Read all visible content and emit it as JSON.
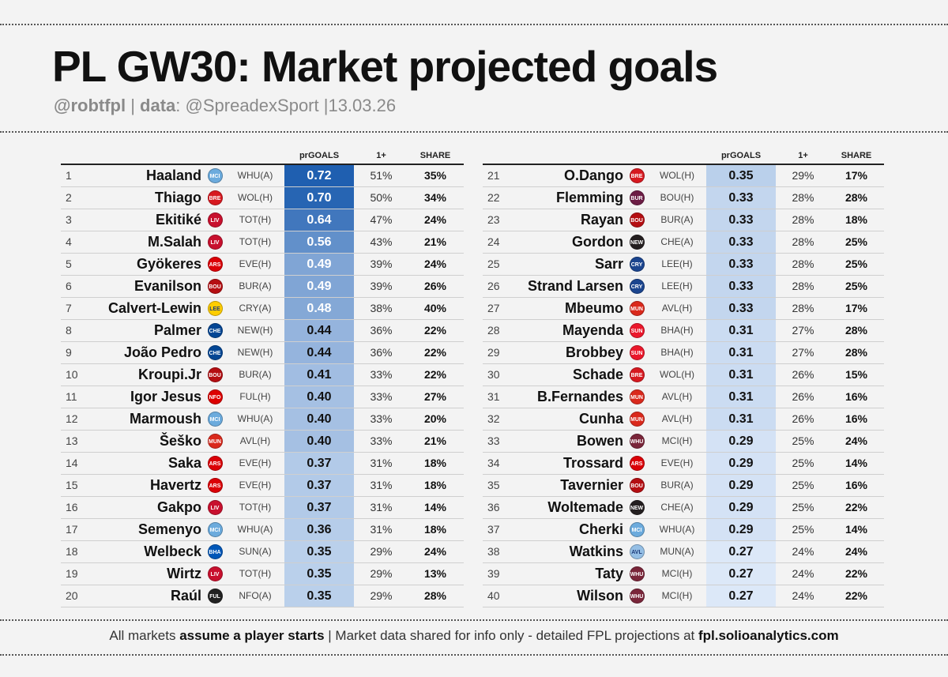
{
  "title": "PL GW30: Market projected goals",
  "subtitle": {
    "handle": "@robtfpl",
    "sep1": " | ",
    "data_label": "data",
    "data_value": ": @SpreadexSport ",
    "sep2": "|",
    "date": "13.03.26"
  },
  "columns": {
    "prgoals": "prGOALS",
    "one_plus": "1+",
    "share": "SHARE"
  },
  "colors": {
    "scale_max": "#1f5fb0",
    "scale_min": "#dce8f8",
    "text_dark": "#111111",
    "text_light": "#ffffff"
  },
  "left_rows": [
    {
      "rank": "1",
      "name": "Haaland",
      "club": "MCI",
      "club_color": "#6cabdd",
      "fixture": "WHU(A)",
      "pr": "0.72",
      "pr_value": 0.72,
      "one": "51%",
      "share": "35%"
    },
    {
      "rank": "2",
      "name": "Thiago",
      "club": "BRE",
      "club_color": "#d71920",
      "fixture": "WOL(H)",
      "pr": "0.70",
      "pr_value": 0.7,
      "one": "50%",
      "share": "34%"
    },
    {
      "rank": "3",
      "name": "Ekitiké",
      "club": "LIV",
      "club_color": "#c8102e",
      "fixture": "TOT(H)",
      "pr": "0.64",
      "pr_value": 0.64,
      "one": "47%",
      "share": "24%"
    },
    {
      "rank": "4",
      "name": "M.Salah",
      "club": "LIV",
      "club_color": "#c8102e",
      "fixture": "TOT(H)",
      "pr": "0.56",
      "pr_value": 0.56,
      "one": "43%",
      "share": "21%"
    },
    {
      "rank": "5",
      "name": "Gyökeres",
      "club": "ARS",
      "club_color": "#db0007",
      "fixture": "EVE(H)",
      "pr": "0.49",
      "pr_value": 0.49,
      "one": "39%",
      "share": "24%"
    },
    {
      "rank": "6",
      "name": "Evanilson",
      "club": "BOU",
      "club_color": "#b50e12",
      "fixture": "BUR(A)",
      "pr": "0.49",
      "pr_value": 0.49,
      "one": "39%",
      "share": "26%"
    },
    {
      "rank": "7",
      "name": "Calvert-Lewin",
      "club": "LEE",
      "club_color": "#ffcd00",
      "fixture": "CRY(A)",
      "pr": "0.48",
      "pr_value": 0.48,
      "one": "38%",
      "share": "40%"
    },
    {
      "rank": "8",
      "name": "Palmer",
      "club": "CHE",
      "club_color": "#034694",
      "fixture": "NEW(H)",
      "pr": "0.44",
      "pr_value": 0.44,
      "one": "36%",
      "share": "22%"
    },
    {
      "rank": "9",
      "name": "João Pedro",
      "club": "CHE",
      "club_color": "#034694",
      "fixture": "NEW(H)",
      "pr": "0.44",
      "pr_value": 0.44,
      "one": "36%",
      "share": "22%"
    },
    {
      "rank": "10",
      "name": "Kroupi.Jr",
      "club": "BOU",
      "club_color": "#b50e12",
      "fixture": "BUR(A)",
      "pr": "0.41",
      "pr_value": 0.41,
      "one": "33%",
      "share": "22%"
    },
    {
      "rank": "11",
      "name": "Igor Jesus",
      "club": "NFO",
      "club_color": "#dd0000",
      "fixture": "FUL(H)",
      "pr": "0.40",
      "pr_value": 0.4,
      "one": "33%",
      "share": "27%"
    },
    {
      "rank": "12",
      "name": "Marmoush",
      "club": "MCI",
      "club_color": "#6cabdd",
      "fixture": "WHU(A)",
      "pr": "0.40",
      "pr_value": 0.4,
      "one": "33%",
      "share": "20%"
    },
    {
      "rank": "13",
      "name": "Šeško",
      "club": "MUN",
      "club_color": "#da291c",
      "fixture": "AVL(H)",
      "pr": "0.40",
      "pr_value": 0.4,
      "one": "33%",
      "share": "21%"
    },
    {
      "rank": "14",
      "name": "Saka",
      "club": "ARS",
      "club_color": "#db0007",
      "fixture": "EVE(H)",
      "pr": "0.37",
      "pr_value": 0.37,
      "one": "31%",
      "share": "18%"
    },
    {
      "rank": "15",
      "name": "Havertz",
      "club": "ARS",
      "club_color": "#db0007",
      "fixture": "EVE(H)",
      "pr": "0.37",
      "pr_value": 0.37,
      "one": "31%",
      "share": "18%"
    },
    {
      "rank": "16",
      "name": "Gakpo",
      "club": "LIV",
      "club_color": "#c8102e",
      "fixture": "TOT(H)",
      "pr": "0.37",
      "pr_value": 0.37,
      "one": "31%",
      "share": "14%"
    },
    {
      "rank": "17",
      "name": "Semenyo",
      "club": "MCI",
      "club_color": "#6cabdd",
      "fixture": "WHU(A)",
      "pr": "0.36",
      "pr_value": 0.36,
      "one": "31%",
      "share": "18%"
    },
    {
      "rank": "18",
      "name": "Welbeck",
      "club": "BHA",
      "club_color": "#0057b8",
      "fixture": "SUN(A)",
      "pr": "0.35",
      "pr_value": 0.35,
      "one": "29%",
      "share": "24%"
    },
    {
      "rank": "19",
      "name": "Wirtz",
      "club": "LIV",
      "club_color": "#c8102e",
      "fixture": "TOT(H)",
      "pr": "0.35",
      "pr_value": 0.35,
      "one": "29%",
      "share": "13%"
    },
    {
      "rank": "20",
      "name": "Raúl",
      "club": "FUL",
      "club_color": "#222222",
      "fixture": "NFO(A)",
      "pr": "0.35",
      "pr_value": 0.35,
      "one": "29%",
      "share": "28%"
    }
  ],
  "right_rows": [
    {
      "rank": "21",
      "name": "O.Dango",
      "club": "BRE",
      "club_color": "#d71920",
      "fixture": "WOL(H)",
      "pr": "0.35",
      "pr_value": 0.35,
      "one": "29%",
      "share": "17%"
    },
    {
      "rank": "22",
      "name": "Flemming",
      "club": "BUR",
      "club_color": "#6c1d45",
      "fixture": "BOU(H)",
      "pr": "0.33",
      "pr_value": 0.33,
      "one": "28%",
      "share": "28%"
    },
    {
      "rank": "23",
      "name": "Rayan",
      "club": "BOU",
      "club_color": "#b50e12",
      "fixture": "BUR(A)",
      "pr": "0.33",
      "pr_value": 0.33,
      "one": "28%",
      "share": "18%"
    },
    {
      "rank": "24",
      "name": "Gordon",
      "club": "NEW",
      "club_color": "#241f20",
      "fixture": "CHE(A)",
      "pr": "0.33",
      "pr_value": 0.33,
      "one": "28%",
      "share": "25%"
    },
    {
      "rank": "25",
      "name": "Sarr",
      "club": "CRY",
      "club_color": "#1b458f",
      "fixture": "LEE(H)",
      "pr": "0.33",
      "pr_value": 0.33,
      "one": "28%",
      "share": "25%"
    },
    {
      "rank": "26",
      "name": "Strand Larsen",
      "club": "CRY",
      "club_color": "#1b458f",
      "fixture": "LEE(H)",
      "pr": "0.33",
      "pr_value": 0.33,
      "one": "28%",
      "share": "25%"
    },
    {
      "rank": "27",
      "name": "Mbeumo",
      "club": "MUN",
      "club_color": "#da291c",
      "fixture": "AVL(H)",
      "pr": "0.33",
      "pr_value": 0.33,
      "one": "28%",
      "share": "17%"
    },
    {
      "rank": "28",
      "name": "Mayenda",
      "club": "SUN",
      "club_color": "#eb172b",
      "fixture": "BHA(H)",
      "pr": "0.31",
      "pr_value": 0.31,
      "one": "27%",
      "share": "28%"
    },
    {
      "rank": "29",
      "name": "Brobbey",
      "club": "SUN",
      "club_color": "#eb172b",
      "fixture": "BHA(H)",
      "pr": "0.31",
      "pr_value": 0.31,
      "one": "27%",
      "share": "28%"
    },
    {
      "rank": "30",
      "name": "Schade",
      "club": "BRE",
      "club_color": "#d71920",
      "fixture": "WOL(H)",
      "pr": "0.31",
      "pr_value": 0.31,
      "one": "26%",
      "share": "15%"
    },
    {
      "rank": "31",
      "name": "B.Fernandes",
      "club": "MUN",
      "club_color": "#da291c",
      "fixture": "AVL(H)",
      "pr": "0.31",
      "pr_value": 0.31,
      "one": "26%",
      "share": "16%"
    },
    {
      "rank": "32",
      "name": "Cunha",
      "club": "MUN",
      "club_color": "#da291c",
      "fixture": "AVL(H)",
      "pr": "0.31",
      "pr_value": 0.31,
      "one": "26%",
      "share": "16%"
    },
    {
      "rank": "33",
      "name": "Bowen",
      "club": "WHU",
      "club_color": "#7a263a",
      "fixture": "MCI(H)",
      "pr": "0.29",
      "pr_value": 0.29,
      "one": "25%",
      "share": "24%"
    },
    {
      "rank": "34",
      "name": "Trossard",
      "club": "ARS",
      "club_color": "#db0007",
      "fixture": "EVE(H)",
      "pr": "0.29",
      "pr_value": 0.29,
      "one": "25%",
      "share": "14%"
    },
    {
      "rank": "35",
      "name": "Tavernier",
      "club": "BOU",
      "club_color": "#b50e12",
      "fixture": "BUR(A)",
      "pr": "0.29",
      "pr_value": 0.29,
      "one": "25%",
      "share": "16%"
    },
    {
      "rank": "36",
      "name": "Woltemade",
      "club": "NEW",
      "club_color": "#241f20",
      "fixture": "CHE(A)",
      "pr": "0.29",
      "pr_value": 0.29,
      "one": "25%",
      "share": "22%"
    },
    {
      "rank": "37",
      "name": "Cherki",
      "club": "MCI",
      "club_color": "#6cabdd",
      "fixture": "WHU(A)",
      "pr": "0.29",
      "pr_value": 0.29,
      "one": "25%",
      "share": "14%"
    },
    {
      "rank": "38",
      "name": "Watkins",
      "club": "AVL",
      "club_color": "#95bfe5",
      "fixture": "MUN(A)",
      "pr": "0.27",
      "pr_value": 0.27,
      "one": "24%",
      "share": "24%"
    },
    {
      "rank": "39",
      "name": "Taty",
      "club": "WHU",
      "club_color": "#7a263a",
      "fixture": "MCI(H)",
      "pr": "0.27",
      "pr_value": 0.27,
      "one": "24%",
      "share": "22%"
    },
    {
      "rank": "40",
      "name": "Wilson",
      "club": "WHU",
      "club_color": "#7a263a",
      "fixture": "MCI(H)",
      "pr": "0.27",
      "pr_value": 0.27,
      "one": "24%",
      "share": "22%"
    }
  ],
  "footer": {
    "part1": "All markets ",
    "bold1": "assume a player starts",
    "part2": " |  Market data shared for info only - detailed FPL projections at ",
    "bold2": "fpl.solioanalytics.com"
  }
}
